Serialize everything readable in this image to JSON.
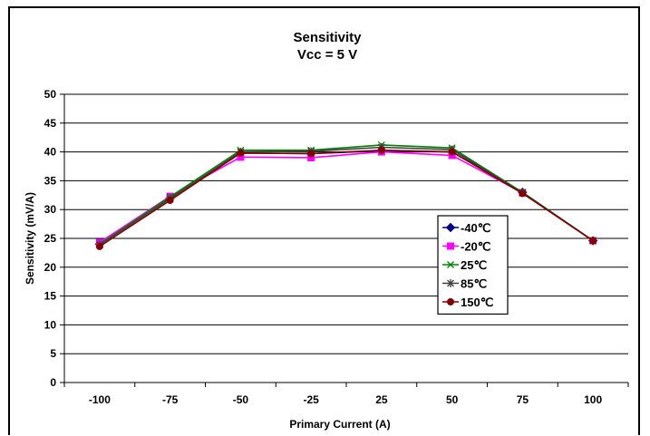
{
  "chart_data": {
    "type": "line",
    "title": "Sensitivity",
    "subtitle": "Vcc = 5 V",
    "xlabel": "Primary Current (A)",
    "ylabel": "Sensitivity (mV/A)",
    "categories": [
      "-100",
      "-75",
      "-50",
      "-25",
      "25",
      "50",
      "75",
      "100"
    ],
    "ylim": [
      0,
      50
    ],
    "yticks": [
      "0",
      "5",
      "10",
      "15",
      "20",
      "25",
      "30",
      "35",
      "40",
      "45",
      "50"
    ],
    "grid": "horizontal",
    "legend_position": "right",
    "series": [
      {
        "name": "-40℃",
        "color": "#000080",
        "marker": "diamond",
        "values": [
          24.0,
          32.0,
          39.8,
          39.7,
          40.2,
          40.0,
          33.0,
          24.6
        ]
      },
      {
        "name": "-20℃",
        "color": "#ff00ff",
        "marker": "square",
        "values": [
          24.3,
          32.3,
          39.1,
          39.0,
          40.0,
          39.4,
          32.9,
          24.6
        ]
      },
      {
        "name": "25℃",
        "color": "#008000",
        "marker": "x",
        "values": [
          24.0,
          32.2,
          40.3,
          40.3,
          41.2,
          40.7,
          33.0,
          24.6
        ]
      },
      {
        "name": "85℃",
        "color": "#404040",
        "marker": "star",
        "values": [
          23.9,
          31.9,
          40.0,
          40.1,
          40.8,
          40.4,
          32.9,
          24.6
        ]
      },
      {
        "name": "150℃",
        "color": "#800000",
        "marker": "circle",
        "values": [
          23.6,
          31.6,
          39.8,
          39.7,
          40.3,
          40.0,
          32.8,
          24.6
        ]
      }
    ]
  }
}
